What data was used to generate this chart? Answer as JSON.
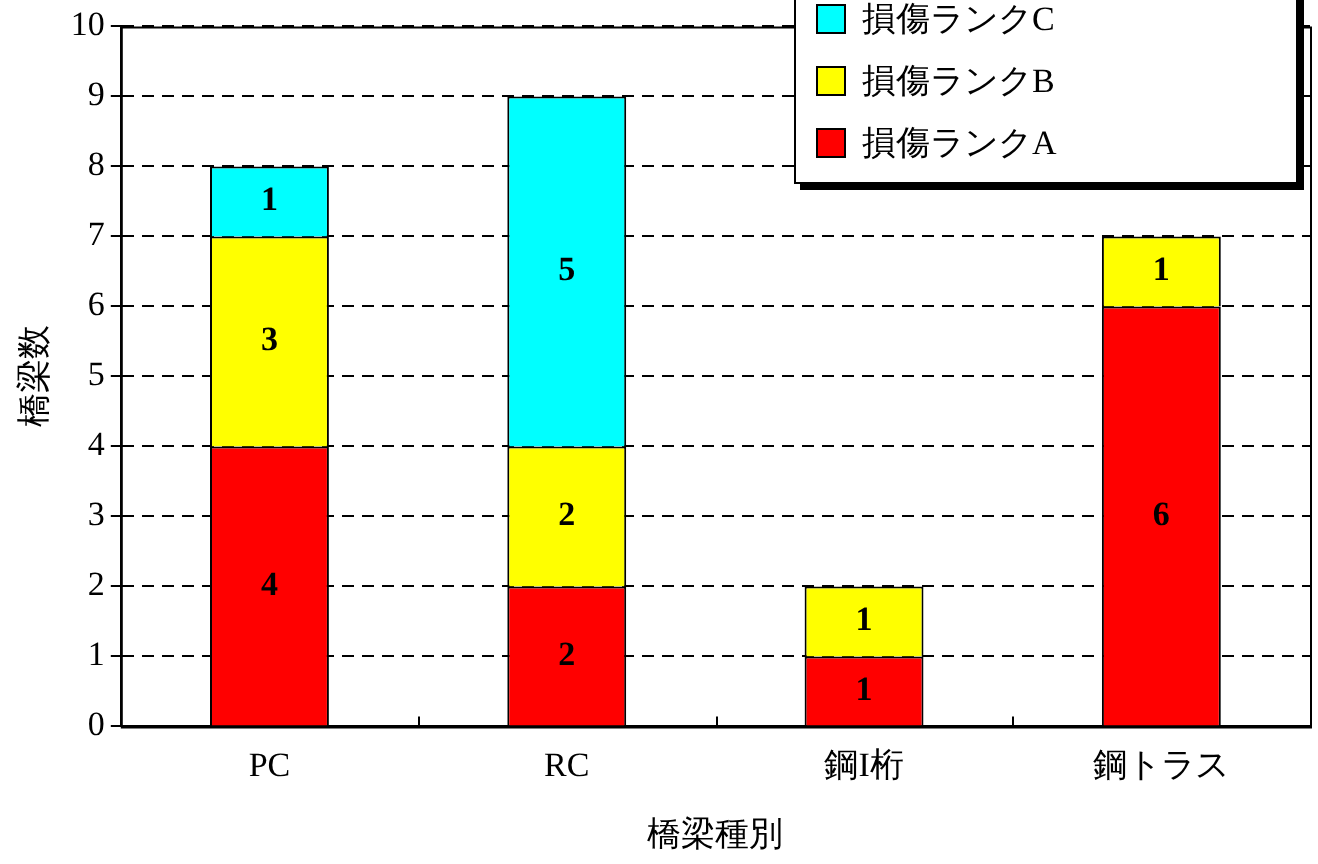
{
  "chart_data": {
    "type": "bar",
    "stacked": true,
    "xlabel": "橋梁種別",
    "ylabel": "橋梁数",
    "categories": [
      "PC",
      "RC",
      "鋼I桁",
      "鋼トラス"
    ],
    "series": [
      {
        "name": "損傷ランクA",
        "color": "#ff0000",
        "values": [
          4,
          2,
          1,
          6
        ]
      },
      {
        "name": "損傷ランクB",
        "color": "#ffff00",
        "values": [
          3,
          2,
          1,
          1
        ]
      },
      {
        "name": "損傷ランクC",
        "color": "#00ffff",
        "values": [
          1,
          5,
          null,
          null
        ]
      }
    ],
    "ylim": [
      0,
      10
    ],
    "yticks": [
      0,
      1,
      2,
      3,
      4,
      5,
      6,
      7,
      8,
      9,
      10
    ],
    "grid": "y",
    "legend": "top right",
    "data_labels": true
  }
}
